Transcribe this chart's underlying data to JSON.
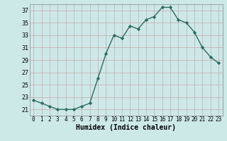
{
  "x": [
    0,
    1,
    2,
    3,
    4,
    5,
    6,
    7,
    8,
    9,
    10,
    11,
    12,
    13,
    14,
    15,
    16,
    17,
    18,
    19,
    20,
    21,
    22,
    23
  ],
  "y": [
    22.5,
    22.0,
    21.5,
    21.0,
    21.0,
    21.0,
    21.5,
    22.0,
    26.0,
    30.0,
    33.0,
    32.5,
    34.5,
    34.0,
    35.5,
    36.0,
    37.5,
    37.5,
    35.5,
    35.0,
    33.5,
    31.0,
    29.5,
    28.5
  ],
  "line_color": "#2e6b5e",
  "marker": "D",
  "markersize": 2.2,
  "linewidth": 1.0,
  "bg_color": "#cce9e8",
  "grid_color": "#c8a8a8",
  "xlabel": "Humidex (Indice chaleur)",
  "xlim": [
    -0.5,
    23.5
  ],
  "ylim": [
    20.0,
    38.0
  ],
  "yticks": [
    21,
    23,
    25,
    27,
    29,
    31,
    33,
    35,
    37
  ],
  "xlabel_fontsize": 7.0,
  "tick_fontsize": 6.0
}
